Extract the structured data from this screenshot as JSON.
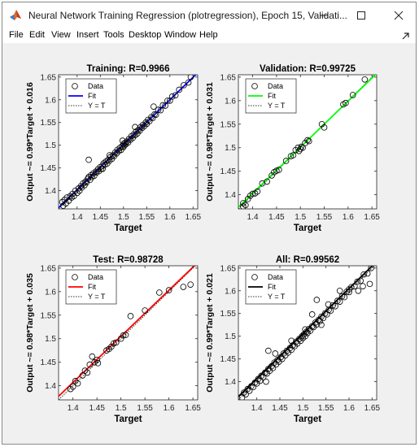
{
  "window": {
    "title": "Neural Network Training Regression (plotregression), Epoch 15, Validati...",
    "icon": "matlab-icon"
  },
  "menu": {
    "items": [
      "File",
      "Edit",
      "View",
      "Insert",
      "Tools",
      "Desktop",
      "Window",
      "Help"
    ]
  },
  "chart_data": [
    {
      "type": "scatter",
      "title": "Training: R=0.9966",
      "xlabel": "Target",
      "ylabel": "Output ~= 0.99*Target + 0.016",
      "xlim": [
        1.36,
        1.66
      ],
      "ylim": [
        1.36,
        1.655
      ],
      "xticks": [
        1.4,
        1.45,
        1.5,
        1.55,
        1.6,
        1.65
      ],
      "yticks": [
        1.4,
        1.45,
        1.5,
        1.55,
        1.6,
        1.65
      ],
      "fit": {
        "slope": 0.99,
        "intercept": 0.016
      },
      "fit_color": "#0000ff",
      "legend": [
        "Data",
        "Fit",
        "Y = T"
      ],
      "legend_position": "top-left",
      "points": [
        [
          1.368,
          1.375
        ],
        [
          1.37,
          1.367
        ],
        [
          1.373,
          1.38
        ],
        [
          1.376,
          1.372
        ],
        [
          1.378,
          1.385
        ],
        [
          1.382,
          1.378
        ],
        [
          1.385,
          1.388
        ],
        [
          1.388,
          1.385
        ],
        [
          1.39,
          1.393
        ],
        [
          1.393,
          1.388
        ],
        [
          1.396,
          1.4
        ],
        [
          1.4,
          1.395
        ],
        [
          1.403,
          1.405
        ],
        [
          1.405,
          1.4
        ],
        [
          1.408,
          1.41
        ],
        [
          1.41,
          1.407
        ],
        [
          1.413,
          1.416
        ],
        [
          1.416,
          1.412
        ],
        [
          1.418,
          1.42
        ],
        [
          1.42,
          1.418
        ],
        [
          1.423,
          1.426
        ],
        [
          1.425,
          1.43
        ],
        [
          1.428,
          1.424
        ],
        [
          1.43,
          1.434
        ],
        [
          1.432,
          1.43
        ],
        [
          1.435,
          1.438
        ],
        [
          1.437,
          1.433
        ],
        [
          1.44,
          1.442
        ],
        [
          1.442,
          1.44
        ],
        [
          1.445,
          1.447
        ],
        [
          1.447,
          1.443
        ],
        [
          1.45,
          1.452
        ],
        [
          1.452,
          1.448
        ],
        [
          1.455,
          1.455
        ],
        [
          1.457,
          1.46
        ],
        [
          1.46,
          1.457
        ],
        [
          1.462,
          1.464
        ],
        [
          1.465,
          1.46
        ],
        [
          1.467,
          1.468
        ],
        [
          1.47,
          1.466
        ],
        [
          1.472,
          1.474
        ],
        [
          1.475,
          1.47
        ],
        [
          1.477,
          1.478
        ],
        [
          1.48,
          1.476
        ],
        [
          1.482,
          1.484
        ],
        [
          1.485,
          1.482
        ],
        [
          1.487,
          1.49
        ],
        [
          1.49,
          1.487
        ],
        [
          1.492,
          1.494
        ],
        [
          1.495,
          1.49
        ],
        [
          1.497,
          1.498
        ],
        [
          1.5,
          1.496
        ],
        [
          1.5,
          1.503
        ],
        [
          1.502,
          1.5
        ],
        [
          1.503,
          1.505
        ],
        [
          1.505,
          1.502
        ],
        [
          1.507,
          1.508
        ],
        [
          1.51,
          1.506
        ],
        [
          1.512,
          1.514
        ],
        [
          1.515,
          1.512
        ],
        [
          1.517,
          1.52
        ],
        [
          1.52,
          1.516
        ],
        [
          1.522,
          1.524
        ],
        [
          1.525,
          1.522
        ],
        [
          1.527,
          1.53
        ],
        [
          1.53,
          1.526
        ],
        [
          1.532,
          1.534
        ],
        [
          1.535,
          1.532
        ],
        [
          1.537,
          1.54
        ],
        [
          1.54,
          1.538
        ],
        [
          1.542,
          1.545
        ],
        [
          1.545,
          1.542
        ],
        [
          1.548,
          1.55
        ],
        [
          1.55,
          1.547
        ],
        [
          1.553,
          1.556
        ],
        [
          1.556,
          1.553
        ],
        [
          1.56,
          1.562
        ],
        [
          1.563,
          1.56
        ],
        [
          1.567,
          1.568
        ],
        [
          1.57,
          1.567
        ],
        [
          1.575,
          1.578
        ],
        [
          1.58,
          1.577
        ],
        [
          1.585,
          1.588
        ],
        [
          1.59,
          1.587
        ],
        [
          1.595,
          1.598
        ],
        [
          1.6,
          1.598
        ],
        [
          1.605,
          1.607
        ],
        [
          1.612,
          1.61
        ],
        [
          1.62,
          1.622
        ],
        [
          1.63,
          1.632
        ],
        [
          1.64,
          1.638
        ],
        [
          1.645,
          1.65
        ],
        [
          1.425,
          1.468
        ],
        [
          1.455,
          1.448
        ],
        [
          1.47,
          1.478
        ],
        [
          1.498,
          1.51
        ],
        [
          1.525,
          1.54
        ],
        [
          1.565,
          1.585
        ]
      ]
    },
    {
      "type": "scatter",
      "title": "Validation: R=0.99725",
      "xlabel": "Target",
      "ylabel": "Output ~= 0.98*Target + 0.031",
      "xlim": [
        1.37,
        1.66
      ],
      "ylim": [
        1.37,
        1.655
      ],
      "xticks": [
        1.4,
        1.45,
        1.5,
        1.55,
        1.6,
        1.65
      ],
      "yticks": [
        1.4,
        1.45,
        1.5,
        1.55,
        1.6,
        1.65
      ],
      "fit": {
        "slope": 0.98,
        "intercept": 0.031
      },
      "fit_color": "#00ff00",
      "legend": [
        "Data",
        "Fit",
        "Y = T"
      ],
      "legend_position": "top-left",
      "points": [
        [
          1.38,
          1.382
        ],
        [
          1.385,
          1.378
        ],
        [
          1.39,
          1.391
        ],
        [
          1.395,
          1.398
        ],
        [
          1.4,
          1.402
        ],
        [
          1.405,
          1.403
        ],
        [
          1.41,
          1.407
        ],
        [
          1.42,
          1.424
        ],
        [
          1.43,
          1.428
        ],
        [
          1.44,
          1.441
        ],
        [
          1.445,
          1.448
        ],
        [
          1.45,
          1.451
        ],
        [
          1.455,
          1.453
        ],
        [
          1.47,
          1.472
        ],
        [
          1.48,
          1.482
        ],
        [
          1.485,
          1.484
        ],
        [
          1.49,
          1.495
        ],
        [
          1.495,
          1.5
        ],
        [
          1.497,
          1.493
        ],
        [
          1.5,
          1.497
        ],
        [
          1.502,
          1.502
        ],
        [
          1.505,
          1.5
        ],
        [
          1.51,
          1.51
        ],
        [
          1.515,
          1.516
        ],
        [
          1.518,
          1.514
        ],
        [
          1.545,
          1.55
        ],
        [
          1.55,
          1.543
        ],
        [
          1.59,
          1.592
        ],
        [
          1.595,
          1.595
        ],
        [
          1.61,
          1.612
        ],
        [
          1.635,
          1.645
        ],
        [
          1.38,
          1.375
        ]
      ]
    },
    {
      "type": "scatter",
      "title": "Test: R=0.98728",
      "xlabel": "Target",
      "ylabel": "Output ~= 0.98*Target + 0.035",
      "xlim": [
        1.37,
        1.66
      ],
      "ylim": [
        1.37,
        1.655
      ],
      "xticks": [
        1.4,
        1.45,
        1.5,
        1.55,
        1.6,
        1.65
      ],
      "yticks": [
        1.4,
        1.45,
        1.5,
        1.55,
        1.6,
        1.65
      ],
      "fit": {
        "slope": 0.98,
        "intercept": 0.035
      },
      "fit_color": "#ff0000",
      "legend": [
        "Data",
        "Fit",
        "Y = T"
      ],
      "legend_position": "top-left",
      "points": [
        [
          1.395,
          1.393
        ],
        [
          1.4,
          1.398
        ],
        [
          1.405,
          1.41
        ],
        [
          1.41,
          1.405
        ],
        [
          1.42,
          1.422
        ],
        [
          1.425,
          1.432
        ],
        [
          1.43,
          1.428
        ],
        [
          1.435,
          1.445
        ],
        [
          1.44,
          1.462
        ],
        [
          1.445,
          1.45
        ],
        [
          1.45,
          1.455
        ],
        [
          1.452,
          1.448
        ],
        [
          1.47,
          1.475
        ],
        [
          1.475,
          1.478
        ],
        [
          1.48,
          1.483
        ],
        [
          1.485,
          1.49
        ],
        [
          1.49,
          1.492
        ],
        [
          1.5,
          1.5
        ],
        [
          1.505,
          1.507
        ],
        [
          1.51,
          1.508
        ],
        [
          1.52,
          1.548
        ],
        [
          1.55,
          1.56
        ],
        [
          1.58,
          1.598
        ],
        [
          1.6,
          1.603
        ],
        [
          1.63,
          1.61
        ],
        [
          1.645,
          1.615
        ]
      ]
    },
    {
      "type": "scatter",
      "title": "All: R=0.99562",
      "xlabel": "Target",
      "ylabel": "Output ~= 0.99*Target + 0.021",
      "xlim": [
        1.36,
        1.66
      ],
      "ylim": [
        1.36,
        1.655
      ],
      "xticks": [
        1.4,
        1.45,
        1.5,
        1.55,
        1.6,
        1.65
      ],
      "yticks": [
        1.4,
        1.45,
        1.5,
        1.55,
        1.6,
        1.65
      ],
      "fit": {
        "slope": 0.99,
        "intercept": 0.021
      },
      "fit_color": "#000000",
      "legend": [
        "Data",
        "Fit",
        "Y = T"
      ],
      "legend_position": "top-left",
      "points": [
        [
          1.368,
          1.365
        ],
        [
          1.372,
          1.376
        ],
        [
          1.376,
          1.372
        ],
        [
          1.38,
          1.384
        ],
        [
          1.384,
          1.38
        ],
        [
          1.388,
          1.39
        ],
        [
          1.392,
          1.388
        ],
        [
          1.396,
          1.398
        ],
        [
          1.4,
          1.396
        ],
        [
          1.403,
          1.406
        ],
        [
          1.407,
          1.402
        ],
        [
          1.41,
          1.413
        ],
        [
          1.414,
          1.41
        ],
        [
          1.418,
          1.42
        ],
        [
          1.422,
          1.418
        ],
        [
          1.425,
          1.428
        ],
        [
          1.428,
          1.424
        ],
        [
          1.432,
          1.434
        ],
        [
          1.435,
          1.43
        ],
        [
          1.438,
          1.442
        ],
        [
          1.442,
          1.438
        ],
        [
          1.445,
          1.448
        ],
        [
          1.448,
          1.444
        ],
        [
          1.452,
          1.454
        ],
        [
          1.455,
          1.45
        ],
        [
          1.458,
          1.462
        ],
        [
          1.462,
          1.458
        ],
        [
          1.465,
          1.468
        ],
        [
          1.468,
          1.464
        ],
        [
          1.472,
          1.474
        ],
        [
          1.475,
          1.47
        ],
        [
          1.478,
          1.48
        ],
        [
          1.482,
          1.478
        ],
        [
          1.485,
          1.488
        ],
        [
          1.488,
          1.484
        ],
        [
          1.492,
          1.494
        ],
        [
          1.495,
          1.49
        ],
        [
          1.498,
          1.5
        ],
        [
          1.5,
          1.496
        ],
        [
          1.502,
          1.504
        ],
        [
          1.505,
          1.5
        ],
        [
          1.508,
          1.51
        ],
        [
          1.51,
          1.507
        ],
        [
          1.513,
          1.516
        ],
        [
          1.516,
          1.512
        ],
        [
          1.52,
          1.522
        ],
        [
          1.523,
          1.52
        ],
        [
          1.527,
          1.53
        ],
        [
          1.53,
          1.526
        ],
        [
          1.534,
          1.536
        ],
        [
          1.537,
          1.533
        ],
        [
          1.54,
          1.543
        ],
        [
          1.544,
          1.54
        ],
        [
          1.548,
          1.55
        ],
        [
          1.552,
          1.548
        ],
        [
          1.556,
          1.558
        ],
        [
          1.56,
          1.556
        ],
        [
          1.565,
          1.568
        ],
        [
          1.57,
          1.566
        ],
        [
          1.575,
          1.578
        ],
        [
          1.58,
          1.576
        ],
        [
          1.585,
          1.588
        ],
        [
          1.59,
          1.586
        ],
        [
          1.595,
          1.598
        ],
        [
          1.6,
          1.597
        ],
        [
          1.605,
          1.608
        ],
        [
          1.612,
          1.61
        ],
        [
          1.618,
          1.62
        ],
        [
          1.625,
          1.622
        ],
        [
          1.632,
          1.636
        ],
        [
          1.64,
          1.638
        ],
        [
          1.648,
          1.65
        ],
        [
          1.425,
          1.468
        ],
        [
          1.44,
          1.462
        ],
        [
          1.52,
          1.548
        ],
        [
          1.53,
          1.58
        ],
        [
          1.555,
          1.57
        ],
        [
          1.6,
          1.603
        ],
        [
          1.63,
          1.61
        ],
        [
          1.645,
          1.615
        ],
        [
          1.42,
          1.4
        ],
        [
          1.475,
          1.49
        ],
        [
          1.505,
          1.515
        ],
        [
          1.54,
          1.525
        ],
        [
          1.58,
          1.6
        ],
        [
          1.62,
          1.6
        ]
      ]
    }
  ]
}
